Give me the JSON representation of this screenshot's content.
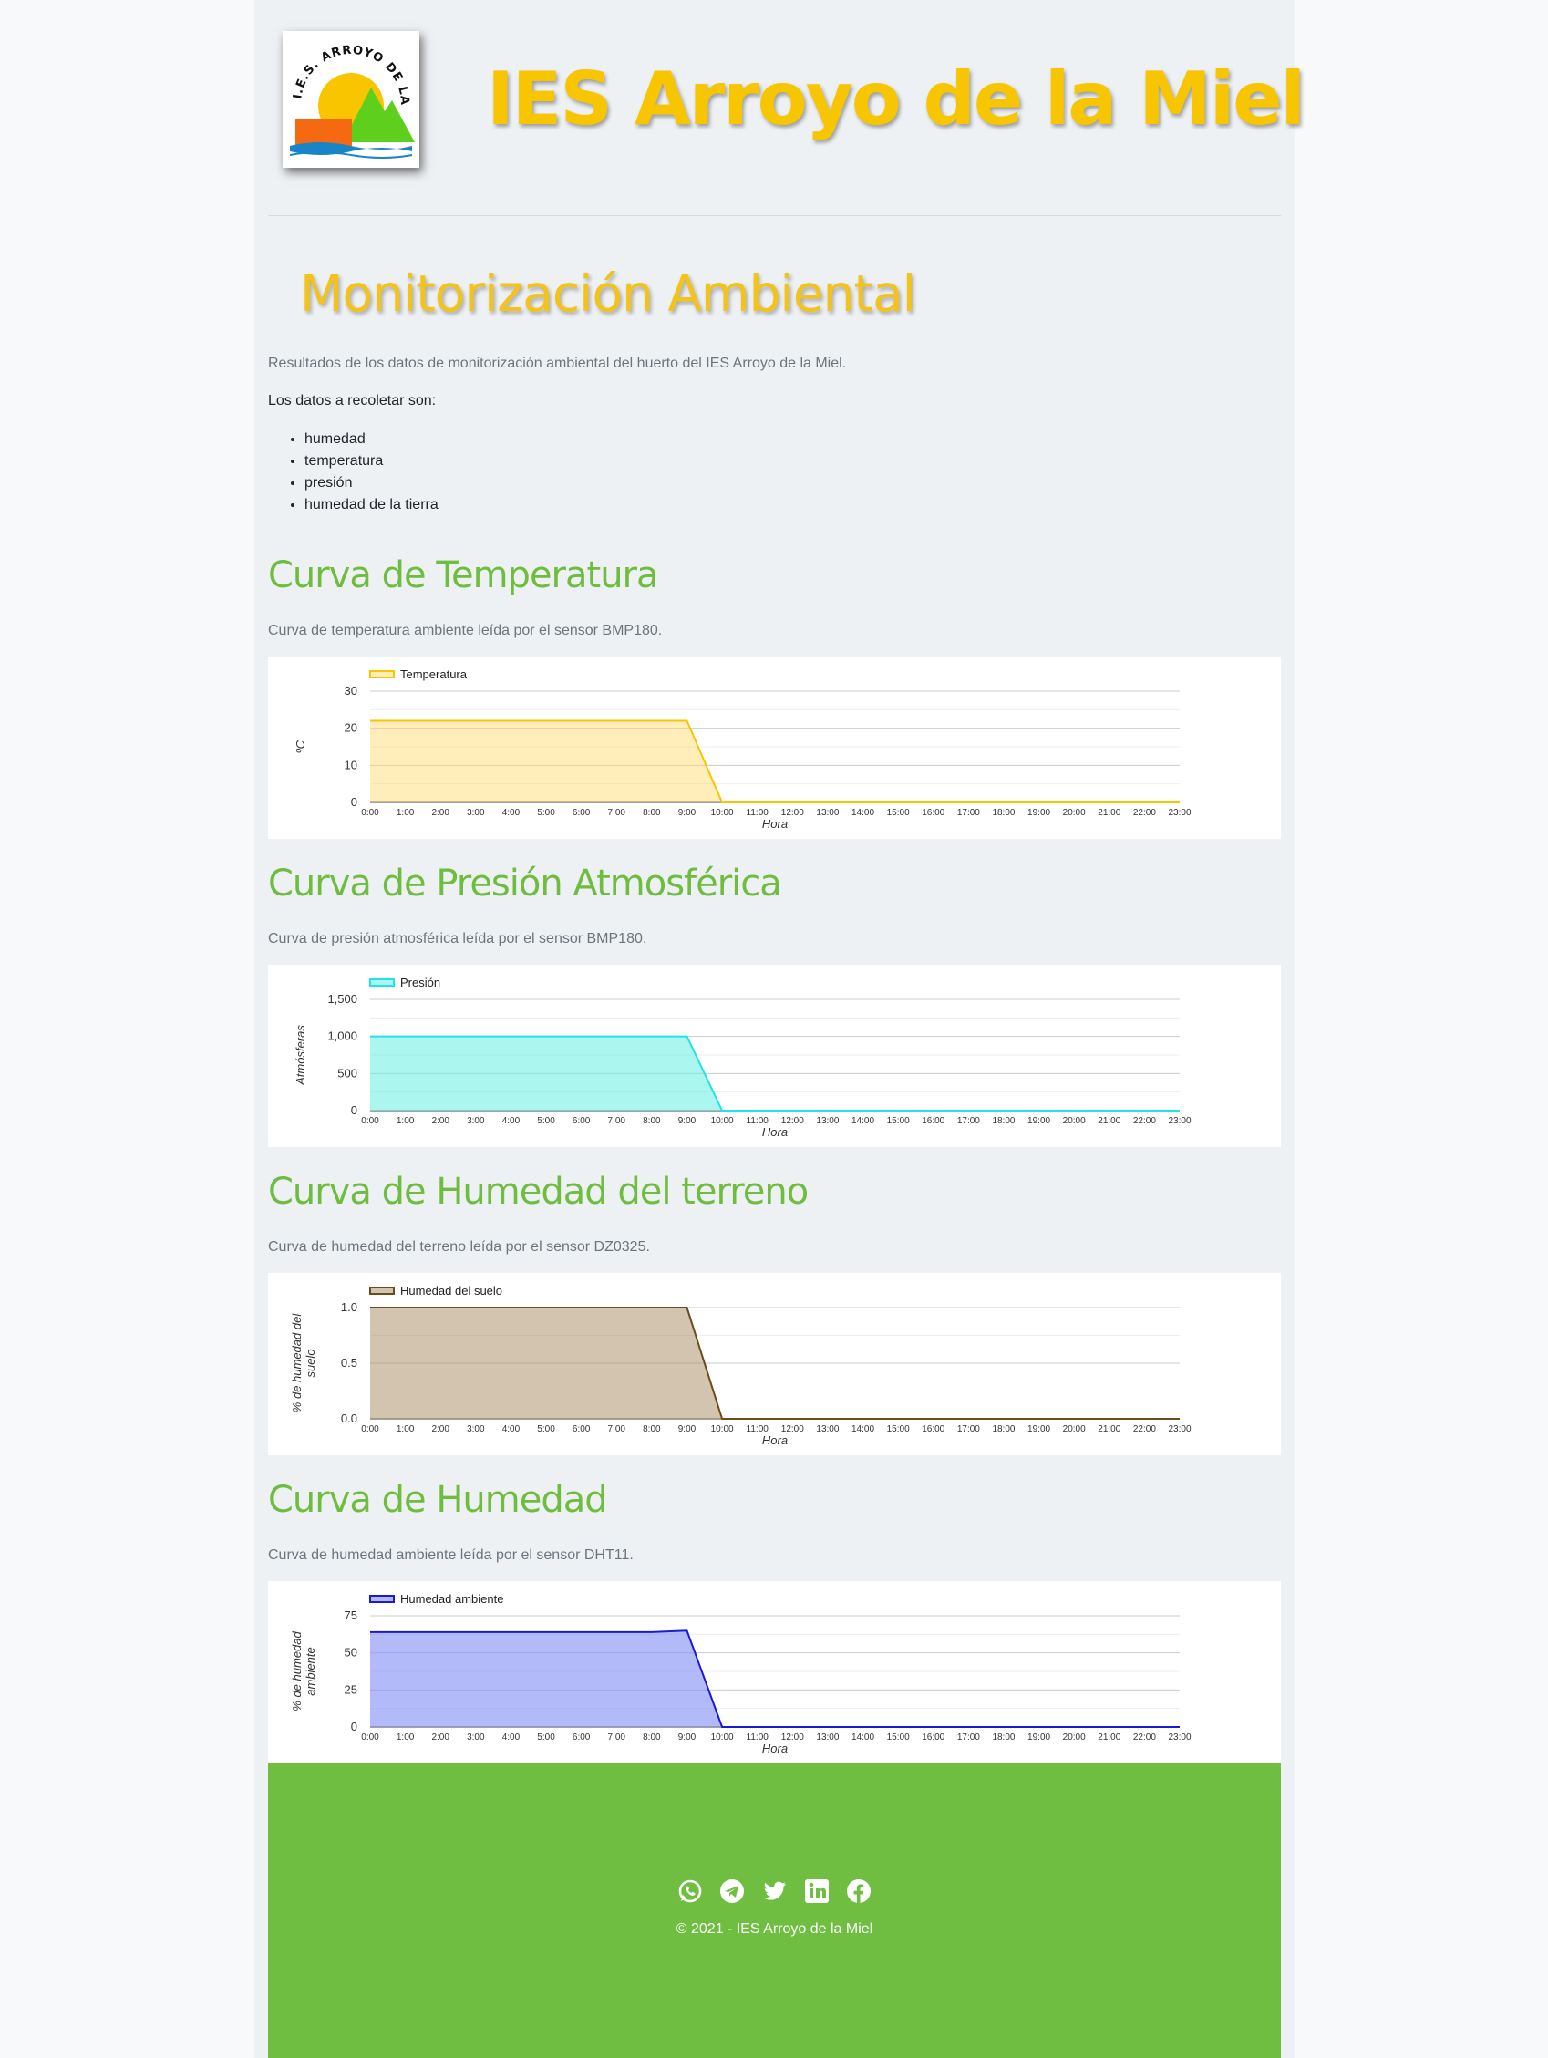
{
  "header": {
    "site_title": "IES Arroyo de la Miel",
    "logo_text": "I.E.S. ARROYO DE LA MIEL"
  },
  "main": {
    "page_title": "Monitorización Ambiental",
    "intro": "Resultados de los datos de monitorización ambiental del huerto del IES Arroyo de la Miel.",
    "subheading": "Los datos a recoletar son:",
    "data_items": [
      "humedad",
      "temperatura",
      "presión",
      "humedad de la tierra"
    ]
  },
  "sections": [
    {
      "title": "Curva de Temperatura",
      "description": "Curva de temperatura ambiente leída por el sensor BMP180."
    },
    {
      "title": "Curva de Presión Atmosférica",
      "description": "Curva de presión atmosférica leída por el sensor BMP180."
    },
    {
      "title": "Curva de Humedad del terreno",
      "description": "Curva de humedad del terreno leída por el sensor DZ0325."
    },
    {
      "title": "Curva de Humedad",
      "description": "Curva de humedad ambiente leída por el sensor DHT11."
    }
  ],
  "chart_data": [
    {
      "type": "area",
      "x": [
        "0:00",
        "1:00",
        "2:00",
        "3:00",
        "4:00",
        "5:00",
        "6:00",
        "7:00",
        "8:00",
        "9:00",
        "10:00",
        "11:00",
        "12:00",
        "13:00",
        "14:00",
        "15:00",
        "16:00",
        "17:00",
        "18:00",
        "19:00",
        "20:00",
        "21:00",
        "22:00",
        "23:00"
      ],
      "series": [
        {
          "name": "Temperatura",
          "values": [
            22,
            22,
            22,
            22,
            22,
            22,
            22,
            22,
            22,
            22,
            0,
            0,
            0,
            0,
            0,
            0,
            0,
            0,
            0,
            0,
            0,
            0,
            0,
            0
          ]
        }
      ],
      "xlabel": "Hora",
      "ylabel": "ºC",
      "ylim": [
        0,
        30
      ],
      "yticks": [
        "0",
        "10",
        "20",
        "30"
      ],
      "ytick_values": [
        0,
        10,
        20,
        30
      ],
      "color": "#f7c600",
      "fill": "rgba(255,214,102,0.45)",
      "grid": true,
      "legend": "top-left"
    },
    {
      "type": "area",
      "x": [
        "0:00",
        "1:00",
        "2:00",
        "3:00",
        "4:00",
        "5:00",
        "6:00",
        "7:00",
        "8:00",
        "9:00",
        "10:00",
        "11:00",
        "12:00",
        "13:00",
        "14:00",
        "15:00",
        "16:00",
        "17:00",
        "18:00",
        "19:00",
        "20:00",
        "21:00",
        "22:00",
        "23:00"
      ],
      "series": [
        {
          "name": "Presión",
          "values": [
            1000,
            1000,
            1000,
            1000,
            1000,
            1000,
            1000,
            1000,
            1000,
            1000,
            0,
            0,
            0,
            0,
            0,
            0,
            0,
            0,
            0,
            0,
            0,
            0,
            0,
            0
          ]
        }
      ],
      "xlabel": "Hora",
      "ylabel": "Atmósferas",
      "ylim": [
        0,
        1500
      ],
      "yticks": [
        "0",
        "500",
        "1,000",
        "1,500"
      ],
      "ytick_values": [
        0,
        500,
        1000,
        1500
      ],
      "color": "#1ee3e8",
      "fill": "rgba(102,240,228,0.55)",
      "grid": true,
      "legend": "top-left"
    },
    {
      "type": "area",
      "x": [
        "0:00",
        "1:00",
        "2:00",
        "3:00",
        "4:00",
        "5:00",
        "6:00",
        "7:00",
        "8:00",
        "9:00",
        "10:00",
        "11:00",
        "12:00",
        "13:00",
        "14:00",
        "15:00",
        "16:00",
        "17:00",
        "18:00",
        "19:00",
        "20:00",
        "21:00",
        "22:00",
        "23:00"
      ],
      "series": [
        {
          "name": "Humedad del suelo",
          "values": [
            1,
            1,
            1,
            1,
            1,
            1,
            1,
            1,
            1,
            1,
            0,
            0,
            0,
            0,
            0,
            0,
            0,
            0,
            0,
            0,
            0,
            0,
            0,
            0
          ]
        }
      ],
      "xlabel": "Hora",
      "ylabel": "% de humedad del suelo",
      "ylim": [
        0,
        1
      ],
      "yticks": [
        "0.0",
        "0.5",
        "1.0"
      ],
      "ytick_values": [
        0,
        0.5,
        1
      ],
      "color": "#6b4c1a",
      "fill": "rgba(165,138,96,0.5)",
      "grid": true,
      "legend": "top-left"
    },
    {
      "type": "area",
      "x": [
        "0:00",
        "1:00",
        "2:00",
        "3:00",
        "4:00",
        "5:00",
        "6:00",
        "7:00",
        "8:00",
        "9:00",
        "10:00",
        "11:00",
        "12:00",
        "13:00",
        "14:00",
        "15:00",
        "16:00",
        "17:00",
        "18:00",
        "19:00",
        "20:00",
        "21:00",
        "22:00",
        "23:00"
      ],
      "series": [
        {
          "name": "Humedad ambiente",
          "values": [
            64,
            64,
            64,
            64,
            64,
            64,
            64,
            64,
            64,
            65,
            0,
            0,
            0,
            0,
            0,
            0,
            0,
            0,
            0,
            0,
            0,
            0,
            0,
            0
          ]
        }
      ],
      "xlabel": "Hora",
      "ylabel": "% de humedad ambiente",
      "ylim": [
        0,
        75
      ],
      "yticks": [
        "0",
        "25",
        "50",
        "75"
      ],
      "ytick_values": [
        0,
        25,
        50,
        75
      ],
      "color": "#1a1ad4",
      "fill": "rgba(128,140,246,0.6)",
      "grid": true,
      "legend": "top-left"
    }
  ],
  "footer": {
    "social_icons": [
      "whatsapp-icon",
      "telegram-icon",
      "twitter-icon",
      "linkedin-icon",
      "facebook-icon"
    ],
    "copyright": "© 2021 - IES Arroyo de la Miel"
  }
}
